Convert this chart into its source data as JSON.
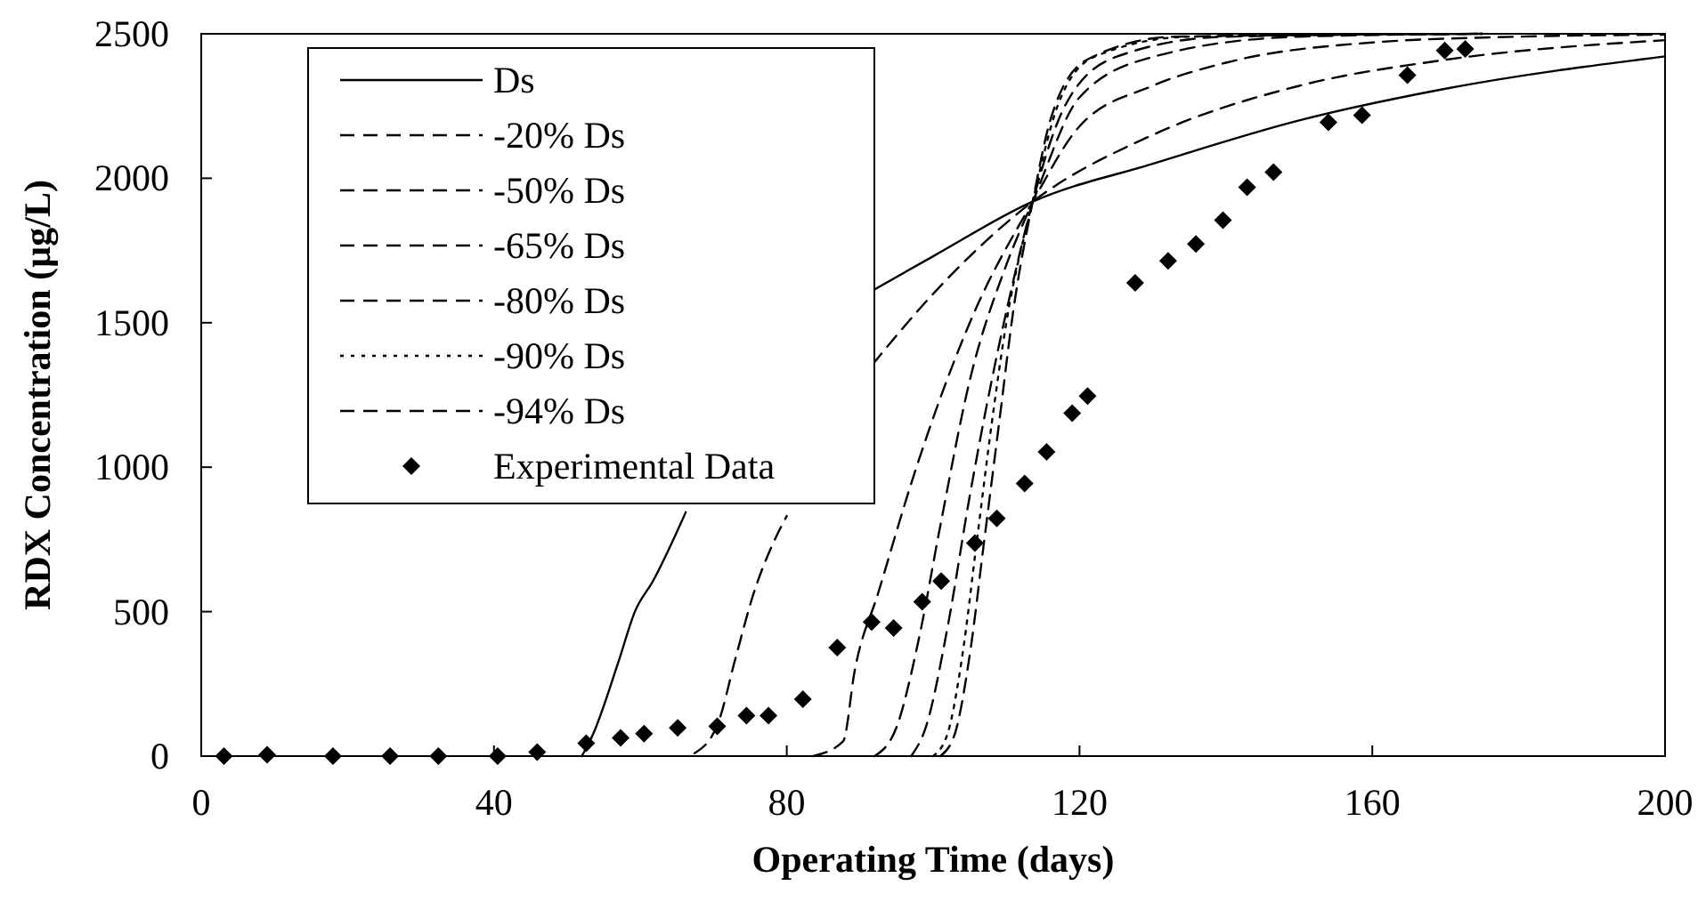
{
  "chart_data": {
    "type": "line",
    "xlabel": "Operating Time (days)",
    "ylabel": "RDX Concentration (µg/L)",
    "xlim": [
      0,
      200
    ],
    "xticks": [
      0,
      40,
      80,
      120,
      160,
      200
    ],
    "ylim": [
      0,
      2500
    ],
    "yticks": [
      0,
      500,
      1000,
      1500,
      2000,
      2500
    ],
    "grid": false,
    "legend": "top left",
    "marker": "none",
    "series": [
      {
        "name": "Ds",
        "color": "#000000",
        "line_style": "solid",
        "x": [
          52,
          53.5,
          56.9,
          59.3,
          61.7,
          66.2,
          80,
          91.7,
          100,
          113.6,
          130,
          150,
          170,
          200
        ],
        "values": [
          0,
          74,
          318,
          503,
          605,
          844,
          null,
          1611,
          1730,
          1919,
          2050,
          2200,
          2310,
          2422
        ]
      },
      {
        "name": "-20% Ds",
        "color": "#000000",
        "line_style": "dashed",
        "x": [
          67.4,
          70.6,
          73,
          75.5,
          78,
          80,
          85,
          91.7,
          100,
          113.6,
          130,
          150,
          170,
          200
        ],
        "values": [
          10,
          113,
          339,
          565,
          729,
          831,
          null,
          1355,
          1600,
          1919,
          2150,
          2320,
          2410,
          2478
        ]
      },
      {
        "name": "-50% Ds",
        "color": "#000000",
        "line_style": "dashed",
        "x": [
          83.6,
          87.7,
          89.3,
          92.5,
          97.4,
          105.5,
          113.6,
          120,
          130,
          140,
          160,
          180,
          200
        ],
        "values": [
          0,
          51,
          298,
          565,
          975,
          1529,
          1919,
          2180,
          2320,
          2400,
          2470,
          2490,
          2497
        ]
      },
      {
        "name": "-65% Ds",
        "color": "#000000",
        "line_style": "dashed",
        "x": [
          92,
          95,
          98,
          101,
          105,
          110,
          113.6,
          120,
          130,
          150,
          175
        ],
        "values": [
          0,
          100,
          400,
          800,
          1300,
          1700,
          1919,
          2280,
          2420,
          2490,
          2500
        ]
      },
      {
        "name": "-80% Ds",
        "color": "#000000",
        "line_style": "dashed",
        "x": [
          97,
          99,
          102,
          105,
          108,
          111,
          113.6,
          118,
          125,
          140,
          175
        ],
        "values": [
          0,
          100,
          450,
          900,
          1300,
          1650,
          1919,
          2250,
          2420,
          2490,
          2500
        ]
      },
      {
        "name": "-90% Ds",
        "color": "#000000",
        "line_style": "dotted",
        "x": [
          100,
          102,
          104,
          106,
          108,
          110,
          113.6,
          117,
          122,
          135,
          175
        ],
        "values": [
          0,
          80,
          350,
          750,
          1150,
          1500,
          1919,
          2250,
          2420,
          2490,
          2500
        ]
      },
      {
        "name": "-94% Ds",
        "color": "#000000",
        "line_style": "dashed",
        "x": [
          101,
          103,
          105,
          107,
          109,
          111,
          113.6,
          116,
          121,
          133,
          175
        ],
        "values": [
          0,
          80,
          350,
          750,
          1150,
          1550,
          1919,
          2200,
          2410,
          2490,
          2500
        ]
      },
      {
        "name": "Experimental Data",
        "type": "scatter",
        "marker": "diamond",
        "color": "#000000",
        "x": [
          3.1,
          9,
          18,
          25.8,
          32.4,
          40.5,
          45.9,
          52.6,
          57.3,
          60.5,
          65.1,
          70.5,
          74.5,
          77.5,
          82.2,
          86.9,
          91.6,
          94.6,
          98.5,
          101.1,
          105.7,
          108.7,
          112.5,
          115.5,
          119,
          121.1,
          127.6,
          132.1,
          135.9,
          139.6,
          142.9,
          146.5,
          154,
          158.6,
          164.8,
          169.9,
          172.7
        ],
        "values": [
          0,
          5,
          0,
          0,
          0,
          0,
          14,
          45,
          63,
          78,
          98,
          103,
          140,
          140,
          197,
          376,
          464,
          443,
          534,
          606,
          737,
          823,
          944,
          1053,
          1187,
          1246,
          1638,
          1714,
          1773,
          1855,
          1969,
          2021,
          2194,
          2218,
          2357,
          2442,
          2448
        ]
      }
    ]
  }
}
